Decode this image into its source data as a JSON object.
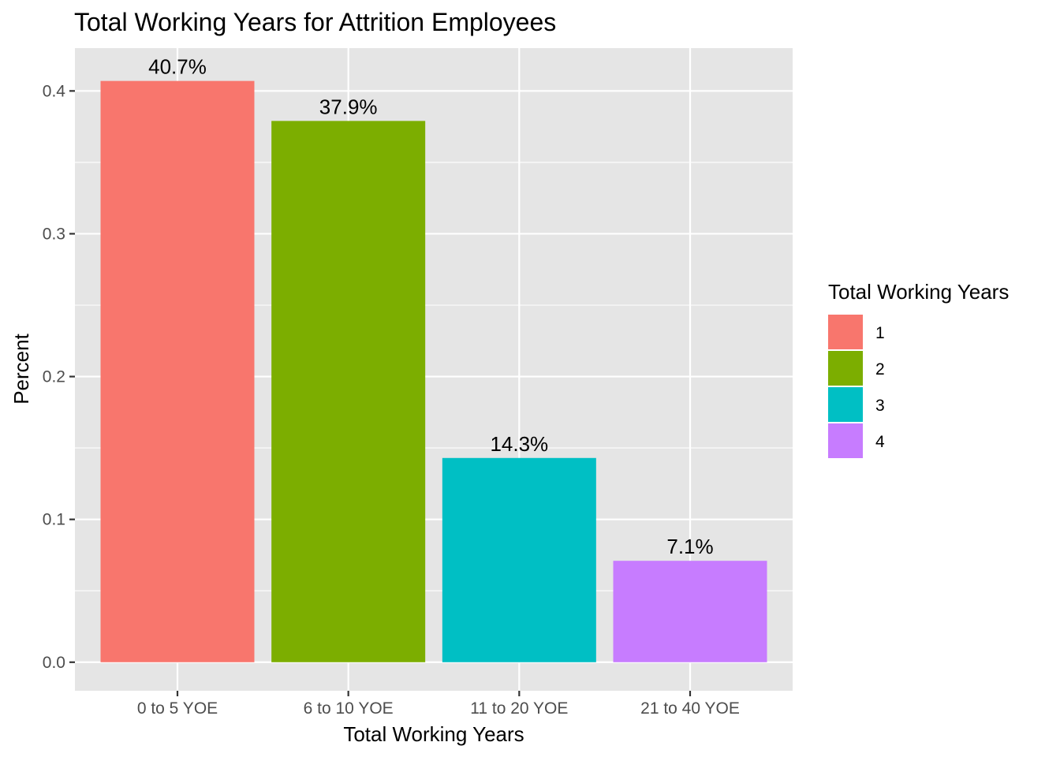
{
  "chart_data": {
    "type": "bar",
    "title": "Total Working Years for Attrition Employees",
    "xlabel": "Total Working Years",
    "ylabel": "Percent",
    "categories": [
      "0 to 5 YOE",
      "6 to 10 YOE",
      "11 to 20 YOE",
      "21 to 40 YOE"
    ],
    "values": [
      0.407,
      0.379,
      0.143,
      0.071
    ],
    "data_labels": [
      "40.7%",
      "37.9%",
      "14.3%",
      "7.1%"
    ],
    "ylim": [
      -0.02,
      0.43
    ],
    "yticks": [
      0.0,
      0.1,
      0.2,
      0.3,
      0.4
    ],
    "ytick_labels": [
      "0.0",
      "0.1",
      "0.2",
      "0.3",
      "0.4"
    ],
    "colors": [
      "#F8766D",
      "#7CAE00",
      "#00BFC4",
      "#C77CFF"
    ],
    "grid": true,
    "panel_background": "#E5E5E5",
    "legend": {
      "title": "Total Working Years",
      "position": "right",
      "entries": [
        "1",
        "2",
        "3",
        "4"
      ]
    }
  }
}
